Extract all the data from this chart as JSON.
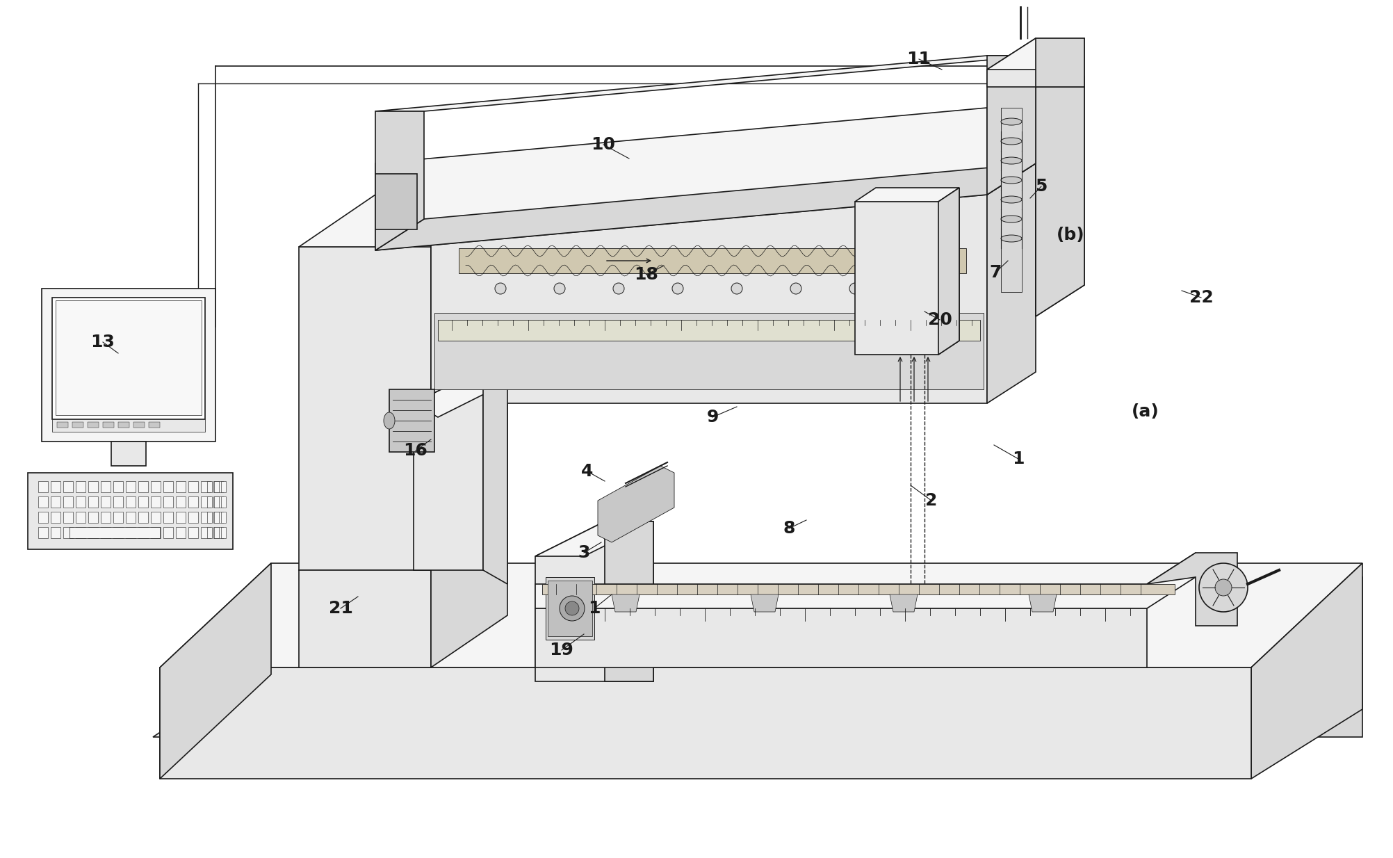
{
  "bg_color": "#ffffff",
  "lc": "#1a1a1a",
  "lw": 1.2,
  "lw_thin": 0.6,
  "lw_thick": 2.0,
  "face_light": "#f5f5f5",
  "face_mid": "#e8e8e8",
  "face_dark": "#d8d8d8",
  "face_darker": "#c8c8c8",
  "face_darkest": "#b8b8b8",
  "labels": [
    [
      "1",
      1465,
      660,
      1420,
      635
    ],
    [
      "1",
      860,
      870,
      840,
      850
    ],
    [
      "2",
      1340,
      720,
      1310,
      700
    ],
    [
      "3",
      850,
      800,
      830,
      780
    ],
    [
      "4",
      840,
      680,
      860,
      660
    ],
    [
      "5",
      1490,
      270,
      1475,
      285
    ],
    [
      "7",
      1430,
      390,
      1420,
      375
    ],
    [
      "8",
      1130,
      760,
      1110,
      750
    ],
    [
      "9",
      1020,
      600,
      1050,
      590
    ],
    [
      "10",
      870,
      205,
      900,
      225
    ],
    [
      "11",
      1320,
      85,
      1350,
      100
    ],
    [
      "13",
      155,
      490,
      165,
      505
    ],
    [
      "16",
      600,
      650,
      615,
      635
    ],
    [
      "18",
      930,
      390,
      950,
      380
    ],
    [
      "19",
      815,
      930,
      800,
      910
    ],
    [
      "20",
      1350,
      460,
      1335,
      448
    ],
    [
      "21",
      495,
      870,
      510,
      855
    ],
    [
      "22",
      1730,
      430,
      1710,
      420
    ],
    [
      "(a)",
      1650,
      590,
      null,
      null
    ],
    [
      "(b)",
      1540,
      340,
      null,
      null
    ]
  ]
}
